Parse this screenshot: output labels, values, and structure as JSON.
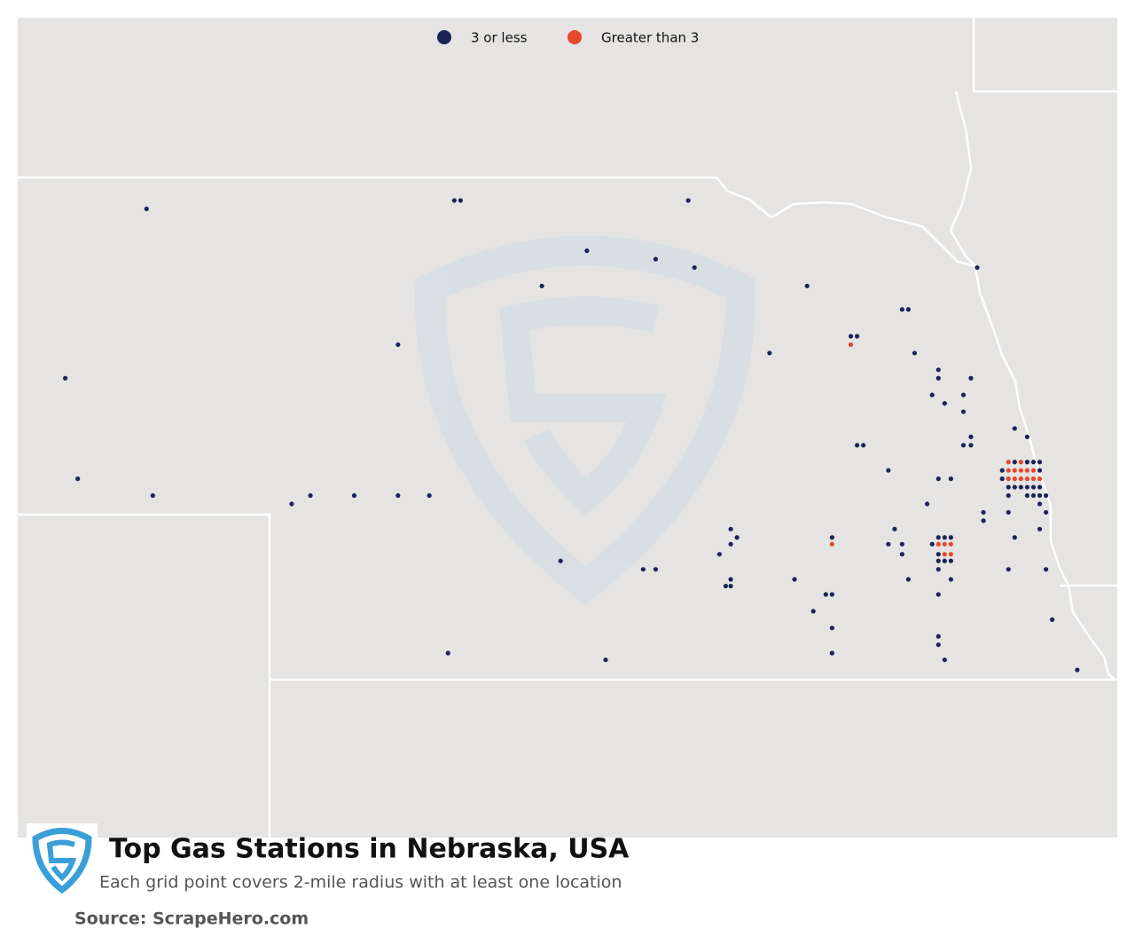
{
  "chart_data": {
    "type": "map",
    "title": "Top Gas Stations in Nebraska, USA",
    "subtitle": "Each grid point covers 2-mile radius with at least one location",
    "source": "Source: ScrapeHero.com",
    "xlim": [
      -104.06,
      -95.27
    ],
    "ylim": [
      39.06,
      43.95
    ],
    "series": [
      {
        "name": "3 or less",
        "color": "#1b2458",
        "x": [
          -103.03,
          -100.57,
          -100.52,
          -98.7,
          -99.51,
          -98.96,
          -98.65,
          -99.87,
          -97.75,
          -96.39,
          -101.02,
          -103.68,
          -98.05,
          -96.99,
          -96.94,
          -97.4,
          -97.35,
          -96.89,
          -96.7,
          -96.7,
          -96.44,
          -96.75,
          -96.5,
          -96.65,
          -96.5,
          -97.35,
          -97.3,
          -96.5,
          -96.44,
          -96.44,
          -96.09,
          -95.99,
          -97.1,
          -96.7,
          -96.6,
          -103.58,
          -102.98,
          -101.87,
          -101.72,
          -101.37,
          -101.02,
          -100.77,
          -96.79,
          -96.34,
          -96.34,
          -96.14,
          -95.84,
          -95.89,
          -95.89,
          -98.36,
          -98.31,
          -98.36,
          -98.45,
          -97.55,
          -97.05,
          -97.1,
          -96.99,
          -96.99,
          -96.75,
          -96.7,
          -96.65,
          -96.6,
          -96.7,
          -96.7,
          -96.65,
          -96.6,
          -96.7,
          -96.09,
          -99.72,
          -99.06,
          -98.96,
          -97.85,
          -98.36,
          -98.4,
          -98.36,
          -96.94,
          -96.6,
          -96.14,
          -95.84,
          -97.6,
          -97.55,
          -96.7,
          -97.7,
          -97.55,
          -95.79,
          -96.7,
          -96.7,
          -97.55,
          -100.62,
          -99.36,
          -96.65,
          -95.59,
          -96.09,
          -95.99,
          -95.94,
          -95.89,
          -96.19,
          -95.89,
          -96.19,
          -96.14,
          -96.09,
          -96.04,
          -95.99,
          -95.94,
          -95.89,
          -96.14,
          -95.99,
          -95.94,
          -95.89,
          -95.84
        ],
        "y": [
          42.81,
          42.86,
          42.86,
          42.86,
          42.56,
          42.51,
          42.46,
          42.35,
          42.35,
          42.46,
          42.0,
          41.8,
          41.95,
          42.21,
          42.21,
          42.05,
          42.05,
          41.95,
          41.85,
          41.8,
          41.8,
          41.7,
          41.7,
          41.65,
          41.6,
          41.4,
          41.4,
          41.4,
          41.45,
          41.4,
          41.5,
          41.45,
          41.25,
          41.2,
          41.2,
          41.2,
          41.1,
          41.05,
          41.1,
          41.1,
          41.1,
          41.1,
          41.05,
          41.0,
          40.95,
          41.0,
          41.0,
          41.05,
          40.9,
          40.9,
          40.85,
          40.81,
          40.75,
          40.85,
          40.9,
          40.81,
          40.81,
          40.75,
          40.81,
          40.85,
          40.85,
          40.85,
          40.75,
          40.71,
          40.71,
          40.71,
          40.66,
          40.85,
          40.71,
          40.66,
          40.66,
          40.6,
          40.6,
          40.56,
          40.56,
          40.6,
          40.6,
          40.66,
          40.66,
          40.51,
          40.51,
          40.51,
          40.41,
          40.31,
          40.36,
          40.26,
          40.21,
          40.16,
          40.16,
          40.12,
          40.12,
          40.06,
          41.3,
          41.3,
          41.3,
          41.3,
          41.25,
          41.25,
          41.2,
          41.15,
          41.15,
          41.15,
          41.15,
          41.15,
          41.15,
          41.1,
          41.1,
          41.1,
          41.1,
          41.1
        ]
      },
      {
        "name": "Greater than 3",
        "color": "#e8472a",
        "x": [
          -96.14,
          -96.04,
          -96.14,
          -96.09,
          -96.04,
          -95.99,
          -95.94,
          -96.14,
          -96.09,
          -96.04,
          -95.99,
          -95.94,
          -95.89,
          -97.4,
          -97.55,
          -96.7,
          -96.65,
          -96.6,
          -96.65,
          -96.6
        ],
        "y": [
          41.3,
          41.3,
          41.25,
          41.25,
          41.25,
          41.25,
          41.25,
          41.2,
          41.2,
          41.2,
          41.2,
          41.2,
          41.2,
          42.0,
          40.81,
          40.81,
          40.81,
          40.81,
          40.75,
          40.75
        ]
      }
    ]
  }
}
